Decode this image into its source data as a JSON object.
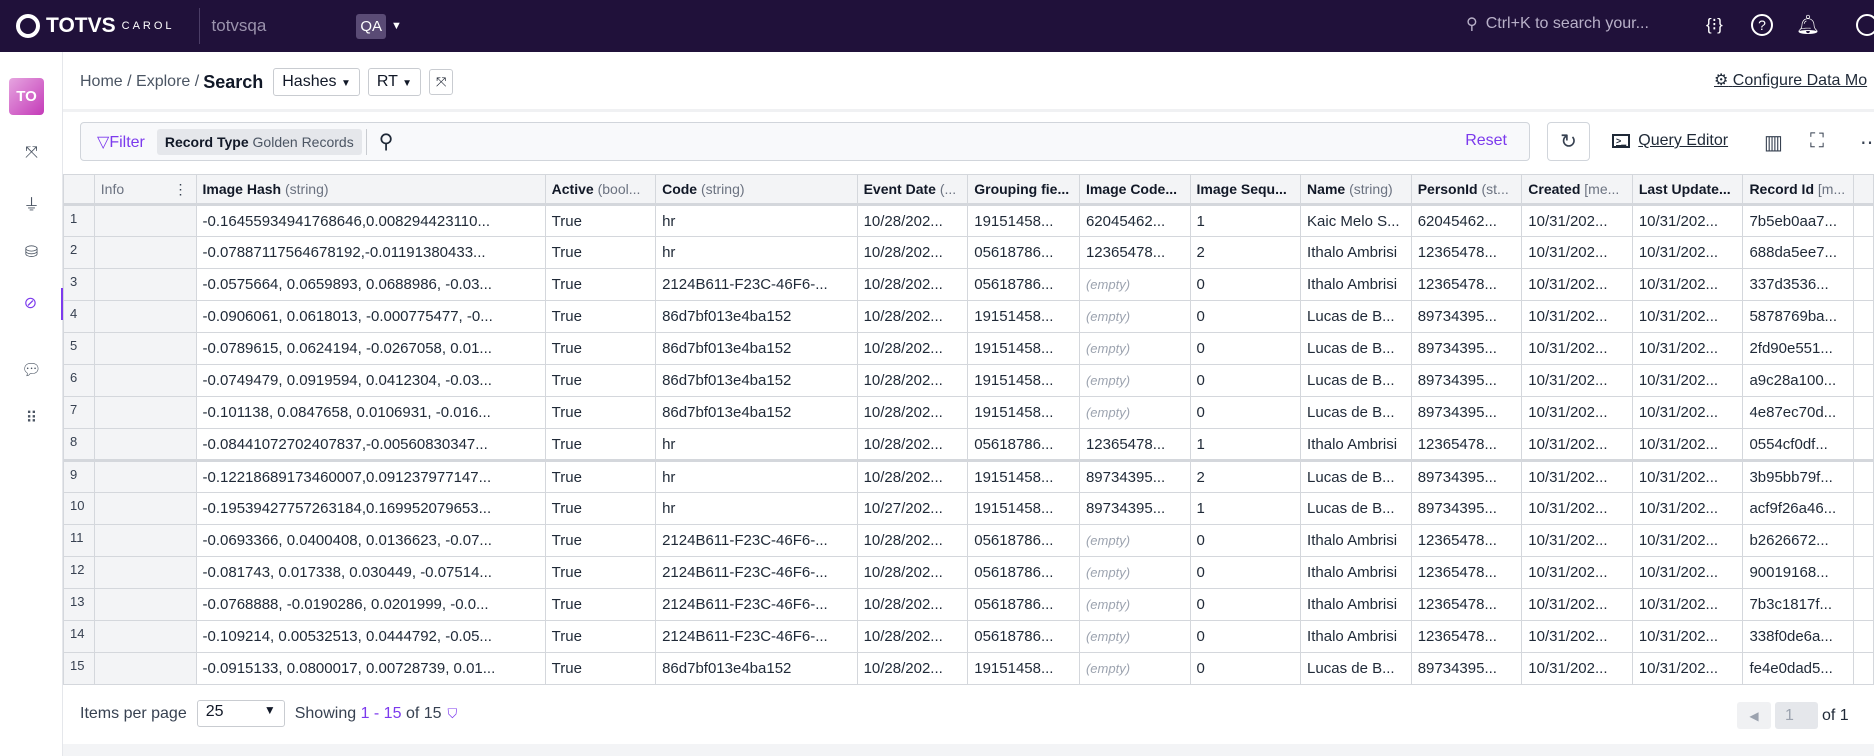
{
  "topbar": {
    "brand": "TOTVS",
    "brand_sub": "CAROL",
    "tenant": "totvsqa",
    "env": "QA",
    "search_placeholder": "Ctrl+K to search your...",
    "icons": [
      "code-braces-icon",
      "help-icon",
      "bell-icon",
      "user-icon"
    ]
  },
  "sidebar": {
    "avatar": "TO",
    "items": [
      "data-model-icon",
      "connector-plug-icon",
      "database-icon",
      "explore-compass-icon",
      "chat-icon",
      "apps-grid-icon"
    ],
    "active": "explore-compass-icon"
  },
  "breadcrumb": {
    "home": "Home",
    "explore": "Explore",
    "current": "Search",
    "sep": "/"
  },
  "selectors": {
    "entity": "Hashes",
    "type": "RT"
  },
  "configure_label": "Configure Data Mo",
  "filter": {
    "label": "Filter",
    "chip_key": "Record Type",
    "chip_value": "Golden Records",
    "reset": "Reset"
  },
  "toolbar": {
    "query_editor": "Query Editor"
  },
  "table": {
    "columns": [
      {
        "name": "Info",
        "type": ""
      },
      {
        "name": "Image Hash",
        "type": "(string)"
      },
      {
        "name": "Active",
        "type": "(bool..."
      },
      {
        "name": "Code",
        "type": "(string)"
      },
      {
        "name": "Event Date",
        "type": "(..."
      },
      {
        "name": "Grouping fie...",
        "type": ""
      },
      {
        "name": "Image Code...",
        "type": ""
      },
      {
        "name": "Image Sequ...",
        "type": ""
      },
      {
        "name": "Name",
        "type": "(string)"
      },
      {
        "name": "PersonId",
        "type": "(st..."
      },
      {
        "name": "Created",
        "type": "[me..."
      },
      {
        "name": "Last Update...",
        "type": ""
      },
      {
        "name": "Record Id",
        "type": "[m..."
      }
    ],
    "rows": [
      [
        "1",
        "",
        "-0.1645593494176864​6,0.008294423110...",
        "True",
        "hr",
        "10/28/202...",
        "19151458...",
        "62045462...",
        "1",
        "Kaic Melo S...",
        "62045462...",
        "10/31/202...",
        "10/31/202...",
        "7b5eb0aa7..."
      ],
      [
        "2",
        "",
        "-0.07887117564678192,-0.01191380433...",
        "True",
        "hr",
        "10/28/202...",
        "05618786...",
        "12365478...",
        "2",
        "Ithalo Ambrisi",
        "12365478...",
        "10/31/202...",
        "10/31/202...",
        "688da5ee7..."
      ],
      [
        "3",
        "",
        "-0.0575664, 0.0659893, 0.0688986, -0.03...",
        "True",
        "2124B611-F23C-46F6-...",
        "10/28/202...",
        "05618786...",
        "(empty)",
        "0",
        "Ithalo Ambrisi",
        "12365478...",
        "10/31/202...",
        "10/31/202...",
        "337d3536..."
      ],
      [
        "4",
        "",
        "-0.0906061, 0.0618013, -0.000775477, -0...",
        "True",
        "86d7bf013e4ba152",
        "10/28/202...",
        "19151458...",
        "(empty)",
        "0",
        "Lucas de B...",
        "89734395...",
        "10/31/202...",
        "10/31/202...",
        "5878769ba..."
      ],
      [
        "5",
        "",
        "-0.0789615, 0.0624194, -0.0267058, 0.01...",
        "True",
        "86d7bf013e4ba152",
        "10/28/202...",
        "19151458...",
        "(empty)",
        "0",
        "Lucas de B...",
        "89734395...",
        "10/31/202...",
        "10/31/202...",
        "2fd90e551..."
      ],
      [
        "6",
        "",
        "-0.0749479, 0.0919594, 0.0412304, -0.03...",
        "True",
        "86d7bf013e4ba152",
        "10/28/202...",
        "19151458...",
        "(empty)",
        "0",
        "Lucas de B...",
        "89734395...",
        "10/31/202...",
        "10/31/202...",
        "a9c28a100..."
      ],
      [
        "7",
        "",
        "-0.101138, 0.0847658, 0.0106931, -0.016...",
        "True",
        "86d7bf013e4ba152",
        "10/28/202...",
        "19151458...",
        "(empty)",
        "0",
        "Lucas de B...",
        "89734395...",
        "10/31/202...",
        "10/31/202...",
        "4e87ec70d..."
      ],
      [
        "8",
        "",
        "-0.08441072702407837,-0.00560830347...",
        "True",
        "hr",
        "10/28/202...",
        "05618786...",
        "12365478...",
        "1",
        "Ithalo Ambrisi",
        "12365478...",
        "10/31/202...",
        "10/31/202...",
        "0554cf0df..."
      ],
      [
        "9",
        "",
        "-0.12218689173460007,0.091237977147...",
        "True",
        "hr",
        "10/28/202...",
        "19151458...",
        "89734395...",
        "2",
        "Lucas de B...",
        "89734395...",
        "10/31/202...",
        "10/31/202...",
        "3b95bb79f..."
      ],
      [
        "10",
        "",
        "-0.19539427757263184,0.169952079653...",
        "True",
        "hr",
        "10/27/202...",
        "19151458...",
        "89734395...",
        "1",
        "Lucas de B...",
        "89734395...",
        "10/31/202...",
        "10/31/202...",
        "acf9f26a46..."
      ],
      [
        "11",
        "",
        "-0.0693366, 0.0400408, 0.0136623, -0.07...",
        "True",
        "2124B611-F23C-46F6-...",
        "10/28/202...",
        "05618786...",
        "(empty)",
        "0",
        "Ithalo Ambrisi",
        "12365478...",
        "10/31/202...",
        "10/31/202...",
        "b2626672..."
      ],
      [
        "12",
        "",
        "-0.081743, 0.017338, 0.030449, -0.07514...",
        "True",
        "2124B611-F23C-46F6-...",
        "10/28/202...",
        "05618786...",
        "(empty)",
        "0",
        "Ithalo Ambrisi",
        "12365478...",
        "10/31/202...",
        "10/31/202...",
        "90019168..."
      ],
      [
        "13",
        "",
        "-0.0768888, -0.0190286, 0.0201999, -0.0...",
        "True",
        "2124B611-F23C-46F6-...",
        "10/28/202...",
        "05618786...",
        "(empty)",
        "0",
        "Ithalo Ambrisi",
        "12365478...",
        "10/31/202...",
        "10/31/202...",
        "7b3c1817f..."
      ],
      [
        "14",
        "",
        "-0.109214, 0.00532513, 0.0444792, -0.05...",
        "True",
        "2124B611-F23C-46F6-...",
        "10/28/202...",
        "05618786...",
        "(empty)",
        "0",
        "Ithalo Ambrisi",
        "12365478...",
        "10/31/202...",
        "10/31/202...",
        "338f0de6a..."
      ],
      [
        "15",
        "",
        "-0.0915133, 0.0800017, 0.00728739, 0.01...",
        "True",
        "86d7bf013e4ba152",
        "10/28/202...",
        "19151458...",
        "(empty)",
        "0",
        "Lucas de B...",
        "89734395...",
        "10/31/202...",
        "10/31/202...",
        "fe4e0dad5..."
      ]
    ]
  },
  "footer": {
    "items_per_page_label": "Items per page",
    "items_per_page": "25",
    "showing_prefix": "Showing",
    "showing_range": "1 - 15",
    "showing_of": "of 15",
    "page": "1",
    "page_of": "of 1"
  },
  "colors": {
    "topbar": "#20113a",
    "accent": "#7c3aed"
  }
}
